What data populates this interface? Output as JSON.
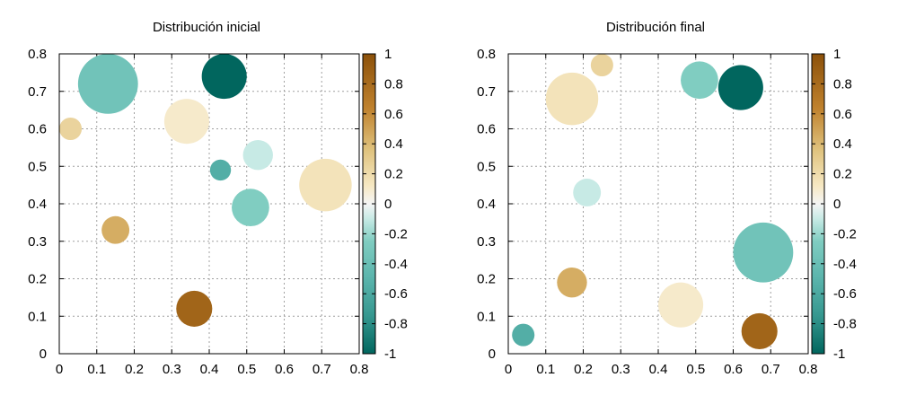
{
  "chart_data": [
    {
      "type": "scatter",
      "title": "Distribución inicial",
      "xlim": [
        0,
        0.8
      ],
      "ylim": [
        0,
        0.8
      ],
      "x_ticks": [
        "0",
        "0.1",
        "0.2",
        "0.3",
        "0.4",
        "0.5",
        "0.6",
        "0.7",
        "0.8"
      ],
      "y_ticks": [
        "0",
        "0.1",
        "0.2",
        "0.3",
        "0.4",
        "0.5",
        "0.6",
        "0.7",
        "0.8"
      ],
      "grid": true,
      "colorbar": {
        "range": [
          -1,
          1
        ],
        "ticks": [
          "1",
          "0.8",
          "0.6",
          "0.4",
          "0.2",
          "0",
          "-0.2",
          "-0.4",
          "-0.6",
          "-0.8",
          "-1"
        ]
      },
      "points": [
        {
          "x": 0.13,
          "y": 0.72,
          "r": 0.08,
          "value": -0.35
        },
        {
          "x": 0.44,
          "y": 0.74,
          "r": 0.06,
          "value": -1.0
        },
        {
          "x": 0.03,
          "y": 0.6,
          "r": 0.03,
          "value": 0.25
        },
        {
          "x": 0.34,
          "y": 0.62,
          "r": 0.06,
          "value": 0.1
        },
        {
          "x": 0.43,
          "y": 0.49,
          "r": 0.028,
          "value": -0.55
        },
        {
          "x": 0.53,
          "y": 0.53,
          "r": 0.04,
          "value": -0.1
        },
        {
          "x": 0.71,
          "y": 0.45,
          "r": 0.07,
          "value": 0.15
        },
        {
          "x": 0.51,
          "y": 0.39,
          "r": 0.05,
          "value": -0.25
        },
        {
          "x": 0.15,
          "y": 0.33,
          "r": 0.037,
          "value": 0.45
        },
        {
          "x": 0.36,
          "y": 0.12,
          "r": 0.048,
          "value": 0.85
        }
      ]
    },
    {
      "type": "scatter",
      "title": "Distribución final",
      "xlim": [
        0,
        0.8
      ],
      "ylim": [
        0,
        0.8
      ],
      "x_ticks": [
        "0",
        "0.1",
        "0.2",
        "0.3",
        "0.4",
        "0.5",
        "0.6",
        "0.7",
        "0.8"
      ],
      "y_ticks": [
        "0",
        "0.1",
        "0.2",
        "0.3",
        "0.4",
        "0.5",
        "0.6",
        "0.7",
        "0.8"
      ],
      "grid": true,
      "colorbar": {
        "range": [
          -1,
          1
        ],
        "ticks": [
          "1",
          "0.8",
          "0.6",
          "0.4",
          "0.2",
          "0",
          "-0.2",
          "-0.4",
          "-0.6",
          "-0.8",
          "-1"
        ]
      },
      "points": [
        {
          "x": 0.17,
          "y": 0.68,
          "r": 0.07,
          "value": 0.15
        },
        {
          "x": 0.25,
          "y": 0.77,
          "r": 0.03,
          "value": 0.25
        },
        {
          "x": 0.51,
          "y": 0.73,
          "r": 0.05,
          "value": -0.25
        },
        {
          "x": 0.62,
          "y": 0.71,
          "r": 0.06,
          "value": -1.0
        },
        {
          "x": 0.21,
          "y": 0.43,
          "r": 0.037,
          "value": -0.1
        },
        {
          "x": 0.68,
          "y": 0.27,
          "r": 0.08,
          "value": -0.35
        },
        {
          "x": 0.17,
          "y": 0.19,
          "r": 0.04,
          "value": 0.45
        },
        {
          "x": 0.46,
          "y": 0.13,
          "r": 0.06,
          "value": 0.1
        },
        {
          "x": 0.04,
          "y": 0.05,
          "r": 0.03,
          "value": -0.55
        },
        {
          "x": 0.67,
          "y": 0.06,
          "r": 0.048,
          "value": 0.85
        }
      ]
    }
  ]
}
